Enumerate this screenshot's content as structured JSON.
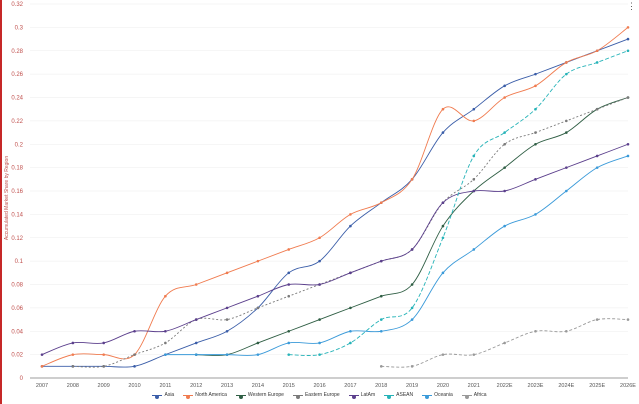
{
  "chart_data": {
    "type": "line",
    "title": "",
    "xlabel": "",
    "ylabel": "Accumulated Market Share by Region",
    "ylim": [
      0,
      0.32
    ],
    "yticks": [
      "0",
      "0.02",
      "0.04",
      "0.06",
      "0.08",
      "0.1",
      "0.12",
      "0.14",
      "0.16",
      "0.18",
      "0.2",
      "0.22",
      "0.24",
      "0.26",
      "0.28",
      "0.3",
      "0.32"
    ],
    "x": [
      "2007",
      "2008",
      "2009",
      "2010",
      "2011",
      "2012",
      "2013",
      "2014",
      "2015",
      "2016",
      "2017",
      "2018",
      "2019",
      "2020",
      "2021",
      "2022E",
      "2023E",
      "2024E",
      "2025E",
      "2026E"
    ],
    "grid": true,
    "legend_position": "bottom",
    "series": [
      {
        "name": "Asia",
        "color": "#3a5da8",
        "dash": "",
        "values": [
          0.01,
          0.01,
          0.01,
          0.01,
          0.02,
          0.03,
          0.04,
          0.06,
          0.09,
          0.1,
          0.13,
          0.15,
          0.17,
          0.21,
          0.23,
          0.25,
          0.26,
          0.27,
          0.28,
          0.29
        ]
      },
      {
        "name": "North America",
        "color": "#f07b4f",
        "dash": "",
        "values": [
          0.01,
          0.02,
          0.02,
          0.02,
          0.07,
          0.08,
          0.09,
          0.1,
          0.11,
          0.12,
          0.14,
          0.15,
          0.17,
          0.23,
          0.22,
          0.24,
          0.25,
          0.27,
          0.28,
          0.3
        ]
      },
      {
        "name": "Western Europe",
        "color": "#2f5e44",
        "dash": "",
        "values": [
          null,
          null,
          null,
          null,
          null,
          0.02,
          0.02,
          0.03,
          0.04,
          0.05,
          0.06,
          0.07,
          0.08,
          0.13,
          0.16,
          0.18,
          0.2,
          0.21,
          0.23,
          0.24
        ]
      },
      {
        "name": "Eastern Europe",
        "color": "#7a7a7a",
        "dash": "2,2",
        "values": [
          null,
          0.01,
          0.01,
          0.02,
          0.03,
          0.05,
          0.05,
          0.06,
          0.07,
          0.08,
          0.09,
          0.1,
          0.11,
          0.15,
          0.17,
          0.2,
          0.21,
          0.22,
          0.23,
          0.24
        ]
      },
      {
        "name": "LatAm",
        "color": "#5b3f8c",
        "dash": "",
        "values": [
          0.02,
          0.03,
          0.03,
          0.04,
          0.04,
          0.05,
          0.06,
          0.07,
          0.08,
          0.08,
          0.09,
          0.1,
          0.11,
          0.15,
          0.16,
          0.16,
          0.17,
          0.18,
          0.19,
          0.2
        ]
      },
      {
        "name": "ASEAN",
        "color": "#26b3b8",
        "dash": "4,2",
        "values": [
          null,
          null,
          null,
          null,
          null,
          null,
          null,
          null,
          0.02,
          0.02,
          0.03,
          0.05,
          0.06,
          0.12,
          0.19,
          0.21,
          0.23,
          0.26,
          0.27,
          0.28
        ]
      },
      {
        "name": "Oceania",
        "color": "#3a9ad9",
        "dash": "",
        "values": [
          null,
          null,
          null,
          null,
          0.02,
          0.02,
          0.02,
          0.02,
          0.03,
          0.03,
          0.04,
          0.04,
          0.05,
          0.09,
          0.11,
          0.13,
          0.14,
          0.16,
          0.18,
          0.19
        ]
      },
      {
        "name": "Africa",
        "color": "#999999",
        "dash": "3,2",
        "values": [
          null,
          null,
          null,
          null,
          null,
          null,
          null,
          null,
          null,
          null,
          null,
          0.01,
          0.01,
          0.02,
          0.02,
          0.03,
          0.04,
          0.04,
          0.05,
          0.05
        ]
      }
    ]
  },
  "ui": {
    "menu_glyph": "⋮"
  }
}
